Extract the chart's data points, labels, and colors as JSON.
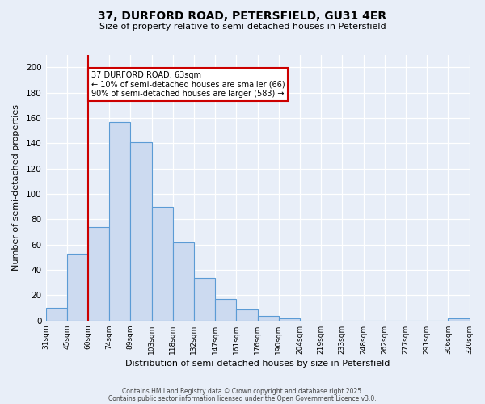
{
  "title": "37, DURFORD ROAD, PETERSFIELD, GU31 4ER",
  "subtitle": "Size of property relative to semi-detached houses in Petersfield",
  "xlabel": "Distribution of semi-detached houses by size in Petersfield",
  "ylabel": "Number of semi-detached properties",
  "bar_values": [
    10,
    53,
    74,
    157,
    141,
    90,
    62,
    34,
    17,
    9,
    4,
    2,
    0,
    0,
    0,
    0,
    0,
    0,
    0,
    2
  ],
  "bin_labels": [
    "31sqm",
    "45sqm",
    "60sqm",
    "74sqm",
    "89sqm",
    "103sqm",
    "118sqm",
    "132sqm",
    "147sqm",
    "161sqm",
    "176sqm",
    "190sqm",
    "204sqm",
    "219sqm",
    "233sqm",
    "248sqm",
    "262sqm",
    "277sqm",
    "291sqm",
    "306sqm",
    "320sqm"
  ],
  "bar_color": "#ccdaf0",
  "bar_edge_color": "#5b9bd5",
  "background_color": "#e8eef8",
  "grid_color": "#ffffff",
  "vline_color": "#cc0000",
  "annotation_title": "37 DURFORD ROAD: 63sqm",
  "annotation_line1": "← 10% of semi-detached houses are smaller (66)",
  "annotation_line2": "90% of semi-detached houses are larger (583) →",
  "annotation_box_color": "#ffffff",
  "annotation_border_color": "#cc0000",
  "ylim": [
    0,
    210
  ],
  "yticks": [
    0,
    20,
    40,
    60,
    80,
    100,
    120,
    140,
    160,
    180,
    200
  ],
  "footer1": "Contains HM Land Registry data © Crown copyright and database right 2025.",
  "footer2": "Contains public sector information licensed under the Open Government Licence v3.0."
}
